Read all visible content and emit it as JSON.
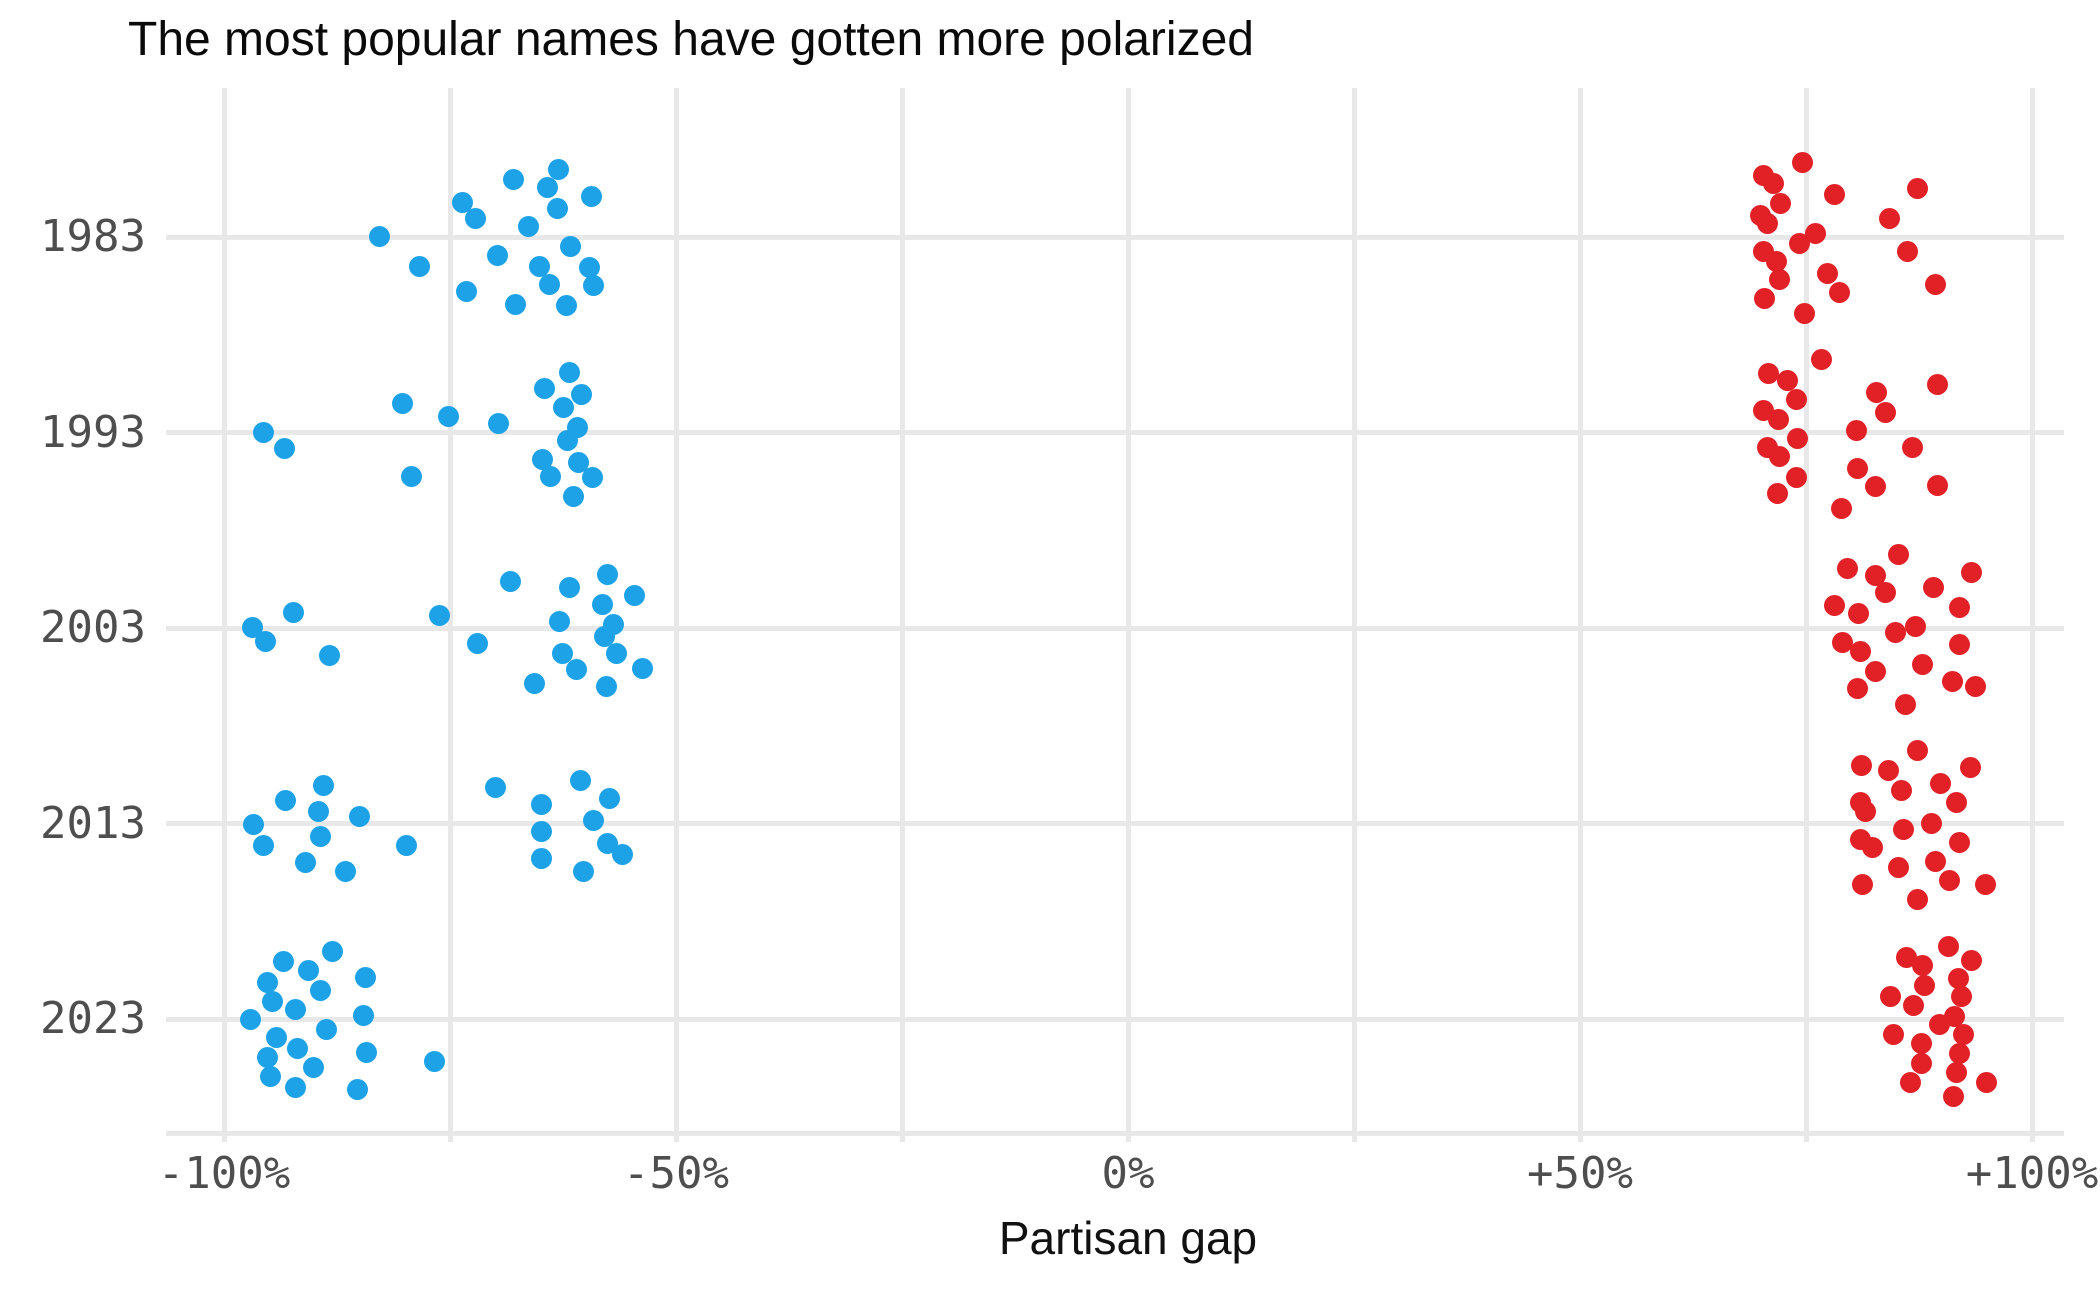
{
  "title": "The most popular names have gotten more polarized",
  "colors": {
    "blue_dot": "#1da2e8",
    "red_dot": "#e22127",
    "gridline": "#e8e8e8",
    "tick_text": "#4e4e4e",
    "title_text": "#0a0a0a"
  },
  "x_axis": {
    "label": "Partisan gap",
    "ticks": [
      "-100%",
      "-50%",
      "0%",
      "+50%",
      "+100%"
    ],
    "tick_values": [
      -100,
      -50,
      0,
      50,
      100
    ],
    "gridline_values": [
      -100,
      -75,
      -50,
      -25,
      0,
      25,
      50,
      75,
      100
    ],
    "range": [
      -100,
      100
    ]
  },
  "y_axis": {
    "ticks": [
      "1983",
      "1993",
      "2003",
      "2013",
      "2023"
    ]
  },
  "chart_data": {
    "type": "scatter",
    "title": "The most popular names have gotten more polarized",
    "xlabel": "Partisan gap",
    "xlim": [
      -100,
      100
    ],
    "grid": true,
    "series_legend": [
      {
        "name": "blue",
        "color": "#1da2e8"
      },
      {
        "name": "red",
        "color": "#e22127"
      }
    ],
    "point_format": "[partisan_gap_percent, vertical_jitter_px]",
    "rows": [
      {
        "year": "1983",
        "blue": [
          [
            -82.8,
            -1
          ],
          [
            -78.4,
            29
          ],
          [
            -73.6,
            -35
          ],
          [
            -72.2,
            -19
          ],
          [
            -73.2,
            54
          ],
          [
            -68,
            -58
          ],
          [
            -69.8,
            18
          ],
          [
            -67.7,
            67
          ],
          [
            -66.3,
            -11
          ],
          [
            -65.1,
            29
          ],
          [
            -63,
            -68
          ],
          [
            -64.2,
            -50
          ],
          [
            -63.1,
            -29
          ],
          [
            -64,
            47
          ],
          [
            -62.1,
            68
          ],
          [
            -61.7,
            9
          ],
          [
            -59.3,
            -41
          ],
          [
            -59.6,
            30
          ],
          [
            -59.1,
            48
          ]
        ],
        "red": [
          [
            74.6,
            -75
          ],
          [
            70.3,
            -62
          ],
          [
            71.4,
            -54
          ],
          [
            72.2,
            -34
          ],
          [
            78.1,
            -43
          ],
          [
            87.3,
            -49
          ],
          [
            70,
            -22
          ],
          [
            70.7,
            -14
          ],
          [
            84.2,
            -19
          ],
          [
            74.3,
            6
          ],
          [
            76,
            -4
          ],
          [
            70.3,
            14
          ],
          [
            71.7,
            24
          ],
          [
            86.2,
            14
          ],
          [
            72.1,
            42
          ],
          [
            77.4,
            36
          ],
          [
            89.3,
            47
          ],
          [
            70.4,
            61
          ],
          [
            78.7,
            55
          ],
          [
            74.8,
            76
          ]
        ]
      },
      {
        "year": "1993",
        "blue": [
          [
            -95.6,
            0
          ],
          [
            -93.3,
            16
          ],
          [
            -80.2,
            -29
          ],
          [
            -79.3,
            44
          ],
          [
            -75.2,
            -16
          ],
          [
            -69.6,
            -9
          ],
          [
            -64.6,
            -44
          ],
          [
            -61.8,
            -60
          ],
          [
            -62.4,
            -25
          ],
          [
            -60.4,
            -38
          ],
          [
            -60.9,
            -5
          ],
          [
            -62,
            8
          ],
          [
            -64.8,
            27
          ],
          [
            -60.8,
            30
          ],
          [
            -63.9,
            44
          ],
          [
            -59.2,
            45
          ],
          [
            -61.3,
            64
          ]
        ],
        "red": [
          [
            76.7,
            -73
          ],
          [
            70.9,
            -59
          ],
          [
            73,
            -52
          ],
          [
            74,
            -33
          ],
          [
            70.3,
            -22
          ],
          [
            72,
            -13
          ],
          [
            82.8,
            -40
          ],
          [
            83.8,
            -20
          ],
          [
            89.6,
            -48
          ],
          [
            80.6,
            -2
          ],
          [
            74.1,
            6
          ],
          [
            70.7,
            15
          ],
          [
            72.1,
            24
          ],
          [
            86.8,
            15
          ],
          [
            80.7,
            36
          ],
          [
            74,
            45
          ],
          [
            82.7,
            54
          ],
          [
            89.6,
            53
          ],
          [
            71.8,
            61
          ],
          [
            78.9,
            76
          ]
        ]
      },
      {
        "year": "2003",
        "blue": [
          [
            -96.8,
            -1
          ],
          [
            -95.4,
            13
          ],
          [
            -92.3,
            -16
          ],
          [
            -88.3,
            27
          ],
          [
            -76.2,
            -13
          ],
          [
            -72,
            15
          ],
          [
            -68.3,
            -47
          ],
          [
            -61.8,
            -41
          ],
          [
            -57.6,
            -54
          ],
          [
            -54.6,
            -33
          ],
          [
            -58.1,
            -24
          ],
          [
            -62.9,
            -7
          ],
          [
            -56.9,
            -4
          ],
          [
            -57.9,
            8
          ],
          [
            -62.6,
            25
          ],
          [
            -61,
            41
          ],
          [
            -56.6,
            25
          ],
          [
            -53.7,
            40
          ],
          [
            -65.7,
            55
          ],
          [
            -57.7,
            58
          ]
        ],
        "red": [
          [
            85.2,
            -74
          ],
          [
            79.6,
            -60
          ],
          [
            82.7,
            -53
          ],
          [
            83.8,
            -36
          ],
          [
            89.1,
            -41
          ],
          [
            93.3,
            -56
          ],
          [
            78.1,
            -23
          ],
          [
            80.8,
            -15
          ],
          [
            92,
            -21
          ],
          [
            84.9,
            4
          ],
          [
            87.1,
            -2
          ],
          [
            79,
            14
          ],
          [
            81,
            23
          ],
          [
            92,
            16
          ],
          [
            87.9,
            36
          ],
          [
            82.7,
            43
          ],
          [
            91.2,
            53
          ],
          [
            93.8,
            58
          ],
          [
            80.7,
            60
          ],
          [
            86,
            76
          ]
        ]
      },
      {
        "year": "2013",
        "blue": [
          [
            -96.7,
            1
          ],
          [
            -95.6,
            22
          ],
          [
            -93.2,
            -23
          ],
          [
            -89,
            -38
          ],
          [
            -89.6,
            -12
          ],
          [
            -89.3,
            13
          ],
          [
            -91,
            39
          ],
          [
            -86.6,
            48
          ],
          [
            -85,
            -7
          ],
          [
            -79.8,
            22
          ],
          [
            -70,
            -36
          ],
          [
            -64.9,
            -19
          ],
          [
            -60.6,
            -43
          ],
          [
            -57.4,
            -25
          ],
          [
            -59.1,
            -3
          ],
          [
            -64.9,
            8
          ],
          [
            -57.6,
            20
          ],
          [
            -55.9,
            31
          ],
          [
            -64.9,
            35
          ],
          [
            -60.2,
            48
          ]
        ],
        "red": [
          [
            87.3,
            -73
          ],
          [
            81.1,
            -58
          ],
          [
            84.1,
            -53
          ],
          [
            93.2,
            -56
          ],
          [
            85.6,
            -33
          ],
          [
            89.9,
            -40
          ],
          [
            81,
            -21
          ],
          [
            91.6,
            -21
          ],
          [
            81.6,
            -12
          ],
          [
            85.8,
            6
          ],
          [
            88.9,
            0
          ],
          [
            81,
            16
          ],
          [
            82.4,
            24
          ],
          [
            92,
            19
          ],
          [
            85.2,
            44
          ],
          [
            89.3,
            38
          ],
          [
            90.9,
            57
          ],
          [
            94.9,
            61
          ],
          [
            81.3,
            61
          ],
          [
            87.3,
            76
          ]
        ]
      },
      {
        "year": "2023",
        "blue": [
          [
            -97.1,
            0
          ],
          [
            -95.2,
            -37
          ],
          [
            -94.6,
            -18
          ],
          [
            -93.4,
            -58
          ],
          [
            -94.2,
            18
          ],
          [
            -95.2,
            38
          ],
          [
            -94.9,
            57
          ],
          [
            -92.1,
            -10
          ],
          [
            -91.9,
            29
          ],
          [
            -92.1,
            68
          ],
          [
            -90.6,
            -49
          ],
          [
            -89.3,
            -29
          ],
          [
            -90.1,
            48
          ],
          [
            -88.7,
            10
          ],
          [
            -88,
            -68
          ],
          [
            -84.4,
            -42
          ],
          [
            -84.6,
            -4
          ],
          [
            -84.2,
            33
          ],
          [
            -85.2,
            70
          ],
          [
            -76.7,
            42
          ]
        ],
        "red": [
          [
            90.8,
            -73
          ],
          [
            86.1,
            -62
          ],
          [
            87.9,
            -54
          ],
          [
            93.3,
            -59
          ],
          [
            88.1,
            -34
          ],
          [
            91.9,
            -41
          ],
          [
            84.3,
            -23
          ],
          [
            92.2,
            -23
          ],
          [
            86.9,
            -14
          ],
          [
            89.8,
            5
          ],
          [
            91.4,
            -3
          ],
          [
            84.7,
            15
          ],
          [
            92.4,
            15
          ],
          [
            87.8,
            24
          ],
          [
            92,
            34
          ],
          [
            87.8,
            44
          ],
          [
            91.6,
            53
          ],
          [
            86.6,
            63
          ],
          [
            95,
            63
          ],
          [
            91.3,
            77
          ]
        ]
      }
    ]
  }
}
